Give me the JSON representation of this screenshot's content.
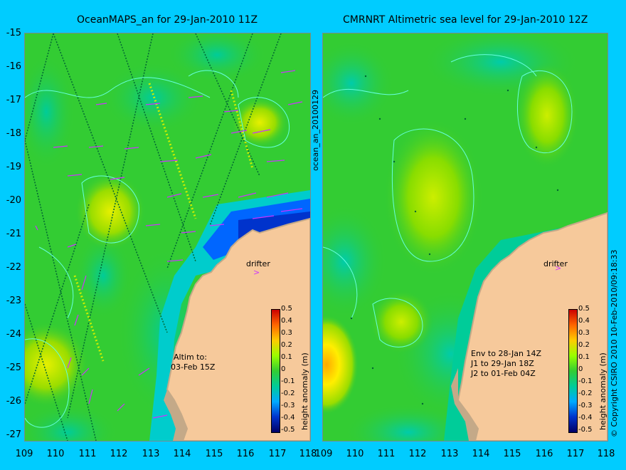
{
  "left_panel": {
    "title": "OceanMAPS_an for 29-Jan-2010 11Z",
    "drifter_label": "drifter",
    "altim_note": [
      "Altim to:",
      "03-Feb 15Z"
    ]
  },
  "right_panel": {
    "title": "CMRNRT Altimetric sea level  for 29-Jan-2010 12Z",
    "drifter_label": "drifter",
    "env_note": [
      "Env to 28-Jan 14Z",
      "J1 to 29-Jan 18Z",
      "J2 to 01-Feb 04Z"
    ]
  },
  "y_axis_ticks": [
    "-15",
    "-16",
    "-17",
    "-18",
    "-19",
    "-20",
    "-21",
    "-22",
    "-23",
    "-24",
    "-25",
    "-26",
    "-27"
  ],
  "x_axis_ticks": [
    "109",
    "110",
    "111",
    "112",
    "113",
    "114",
    "115",
    "116",
    "117",
    "118"
  ],
  "colorbar": {
    "label": "height anomaly (m)",
    "ticks": [
      "0.5",
      "0.4",
      "0.3",
      "0.2",
      "0.1",
      "0",
      "-0.1",
      "-0.2",
      "-0.3",
      "-0.4",
      "-0.5"
    ]
  },
  "side_labels": {
    "run_id": "ocean_an_20100129",
    "copyright": "© Copyright CSIRO 2010   10-Feb-2010/09:18:33"
  },
  "colors": {
    "background": "#00ccff",
    "land": "#f6c99b",
    "land_edge": "#c4a988",
    "ocean_green": "#33cc33",
    "anomaly_yellow": "#ccee00",
    "trough_blue": "#0033cc",
    "vector_magenta": "#cc33ff"
  }
}
